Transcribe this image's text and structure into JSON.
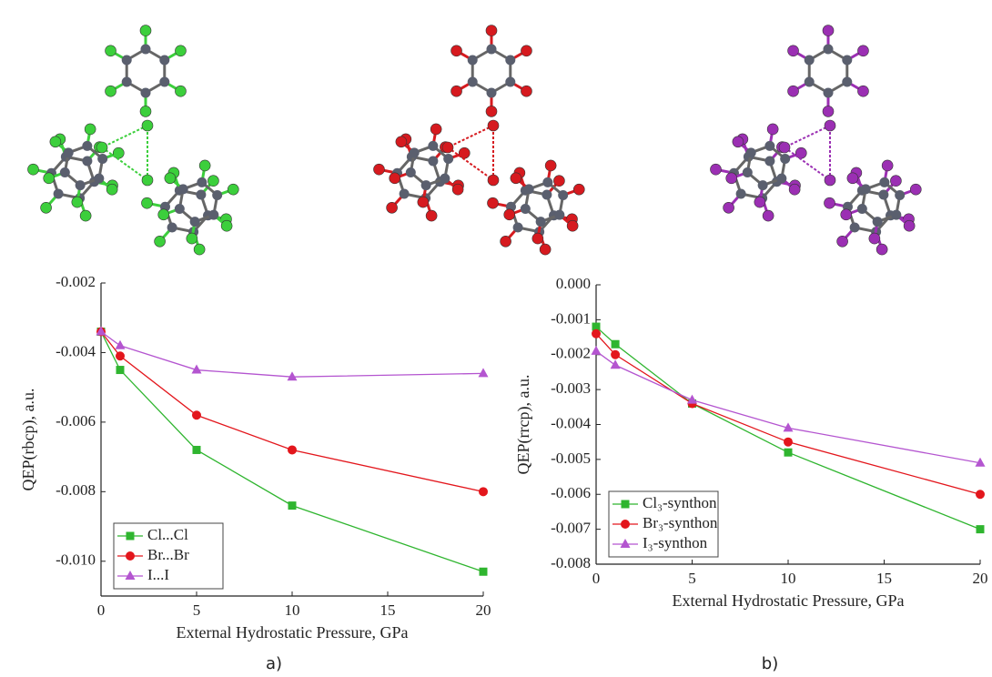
{
  "chart_data": [
    {
      "type": "line",
      "caption": "a)",
      "x_label": "External Hydrostatic Pressure, GPa",
      "y_label": "QEP(rbcp), a.u.",
      "x": [
        0,
        1,
        5,
        10,
        20
      ],
      "xlim": [
        0,
        20
      ],
      "xticks": [
        0,
        5,
        10,
        15,
        20
      ],
      "ylim": [
        -0.011,
        -0.002
      ],
      "yticks": [
        -0.002,
        -0.004,
        -0.006,
        -0.008,
        {
          "value": -0.01,
          "label": "-0.010"
        }
      ],
      "legend": "lower left",
      "series": [
        {
          "name": "Cl...Cl",
          "color": "#2fb52f",
          "marker": "square",
          "values": [
            -0.0034,
            -0.0045,
            -0.0068,
            -0.0084,
            -0.0103
          ]
        },
        {
          "name": "Br...Br",
          "color": "#e3161c",
          "marker": "circle",
          "values": [
            -0.0034,
            -0.0041,
            -0.0058,
            -0.0068,
            -0.008
          ]
        },
        {
          "name": "I...I",
          "color": "#b455d0",
          "marker": "triangle",
          "values": [
            -0.0034,
            -0.0038,
            -0.0045,
            -0.0047,
            -0.0046
          ]
        }
      ]
    },
    {
      "type": "line",
      "caption": "b)",
      "x_label": "External Hydrostatic Pressure, GPa",
      "y_label": "QEP(rrcp), a.u.",
      "x": [
        0,
        1,
        5,
        10,
        20
      ],
      "xlim": [
        0,
        20
      ],
      "xticks": [
        0,
        5,
        10,
        15,
        20
      ],
      "ylim": [
        -0.008,
        0
      ],
      "yticks": [
        {
          "value": 0,
          "label": "0.000"
        },
        -0.001,
        -0.002,
        -0.003,
        -0.004,
        -0.005,
        -0.006,
        -0.007,
        -0.008
      ],
      "legend": "lower left",
      "series": [
        {
          "name": "Cl₃-synthon",
          "color": "#2fb52f",
          "marker": "square",
          "values": [
            -0.0012,
            -0.0017,
            -0.0034,
            -0.0048,
            -0.007
          ]
        },
        {
          "name": "Br₃-synthon",
          "color": "#e3161c",
          "marker": "circle",
          "values": [
            -0.0014,
            -0.002,
            -0.0034,
            -0.0045,
            -0.006
          ]
        },
        {
          "name": "I₃-synthon",
          "color": "#b455d0",
          "marker": "triangle",
          "values": [
            -0.0019,
            -0.0023,
            -0.0033,
            -0.0041,
            -0.0051
          ]
        }
      ]
    }
  ]
}
